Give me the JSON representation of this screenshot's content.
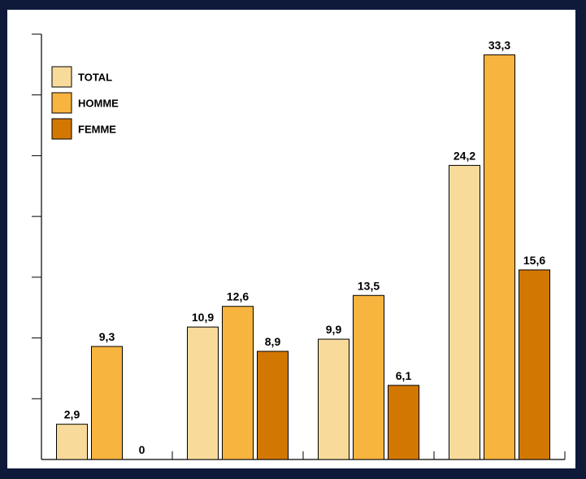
{
  "chart_data": {
    "type": "bar",
    "title": "",
    "xlabel": "",
    "ylabel": "",
    "categories": [
      "",
      "",
      "",
      ""
    ],
    "ylim": [
      0,
      35
    ],
    "grid": false,
    "legend_position": "top-left",
    "series": [
      {
        "name": "TOTAL",
        "color": "#f8db9b",
        "values": [
          2.9,
          10.9,
          9.9,
          24.2
        ],
        "labels": [
          "2,9",
          "10,9",
          "9,9",
          "24,2"
        ]
      },
      {
        "name": "HOMME",
        "color": "#f7b43f",
        "values": [
          9.3,
          12.6,
          13.5,
          33.3
        ],
        "labels": [
          "9,3",
          "12,6",
          "13,5",
          "33,3"
        ]
      },
      {
        "name": "FEMME",
        "color": "#d27701",
        "values": [
          0,
          8.9,
          6.1,
          15.6
        ],
        "labels": [
          "0",
          "8,9",
          "6,1",
          "15,6"
        ]
      }
    ]
  }
}
